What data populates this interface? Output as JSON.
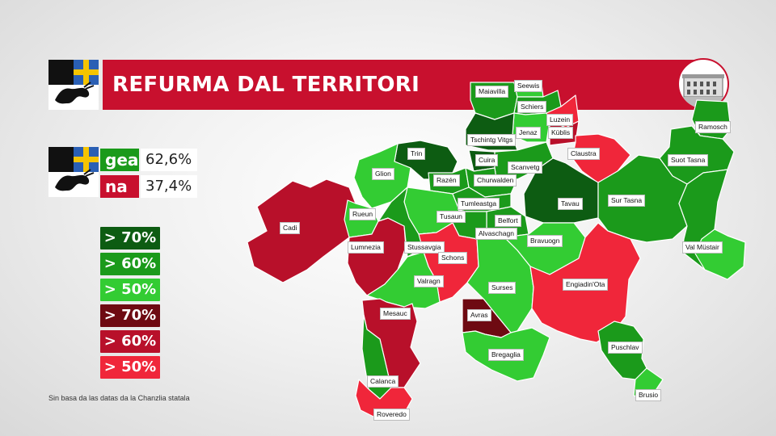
{
  "title": "REFURMA DAL TERRITORI",
  "results": [
    {
      "label": "gea",
      "value": "62,6%",
      "color": "#1a9a1a"
    },
    {
      "label": "na",
      "value": "37,4%",
      "color": "#c8102e"
    }
  ],
  "legend": [
    {
      "label": "> 70%",
      "color": "#0d5c12"
    },
    {
      "label": "> 60%",
      "color": "#1b9a1b"
    },
    {
      "label": "> 50%",
      "color": "#33cc33"
    },
    {
      "label": "> 70%",
      "color": "#6e0a12"
    },
    {
      "label": "> 60%",
      "color": "#b8102a"
    },
    {
      "label": "> 50%",
      "color": "#f0263a"
    }
  ],
  "source_note": "Sin  basa da las datas da la Chanzlia statala",
  "regions": [
    "Maiavilla",
    "Seewis",
    "Schiers",
    "Luzein",
    "Jenaz",
    "Küblis",
    "Tschintg Vitgs",
    "Claustra",
    "Trin",
    "Cuira",
    "Ramosch",
    "Glion",
    "Razén",
    "Scanvetg",
    "Suot Tasna",
    "Churwalden",
    "Tavau",
    "Sur Tasna",
    "Tumleastga",
    "Cadi",
    "Rueun",
    "Tusaun",
    "Belfort",
    "Alvaschagn",
    "Bravuogn",
    "Lumnezia",
    "Stussavgia",
    "Val Müstair",
    "Schons",
    "Valragn",
    "Engiadin'Ota",
    "Surses",
    "Mesauc",
    "Avras",
    "Puschlav",
    "Bregaglia",
    "Calanca",
    "Brusio",
    "Roveredo"
  ]
}
